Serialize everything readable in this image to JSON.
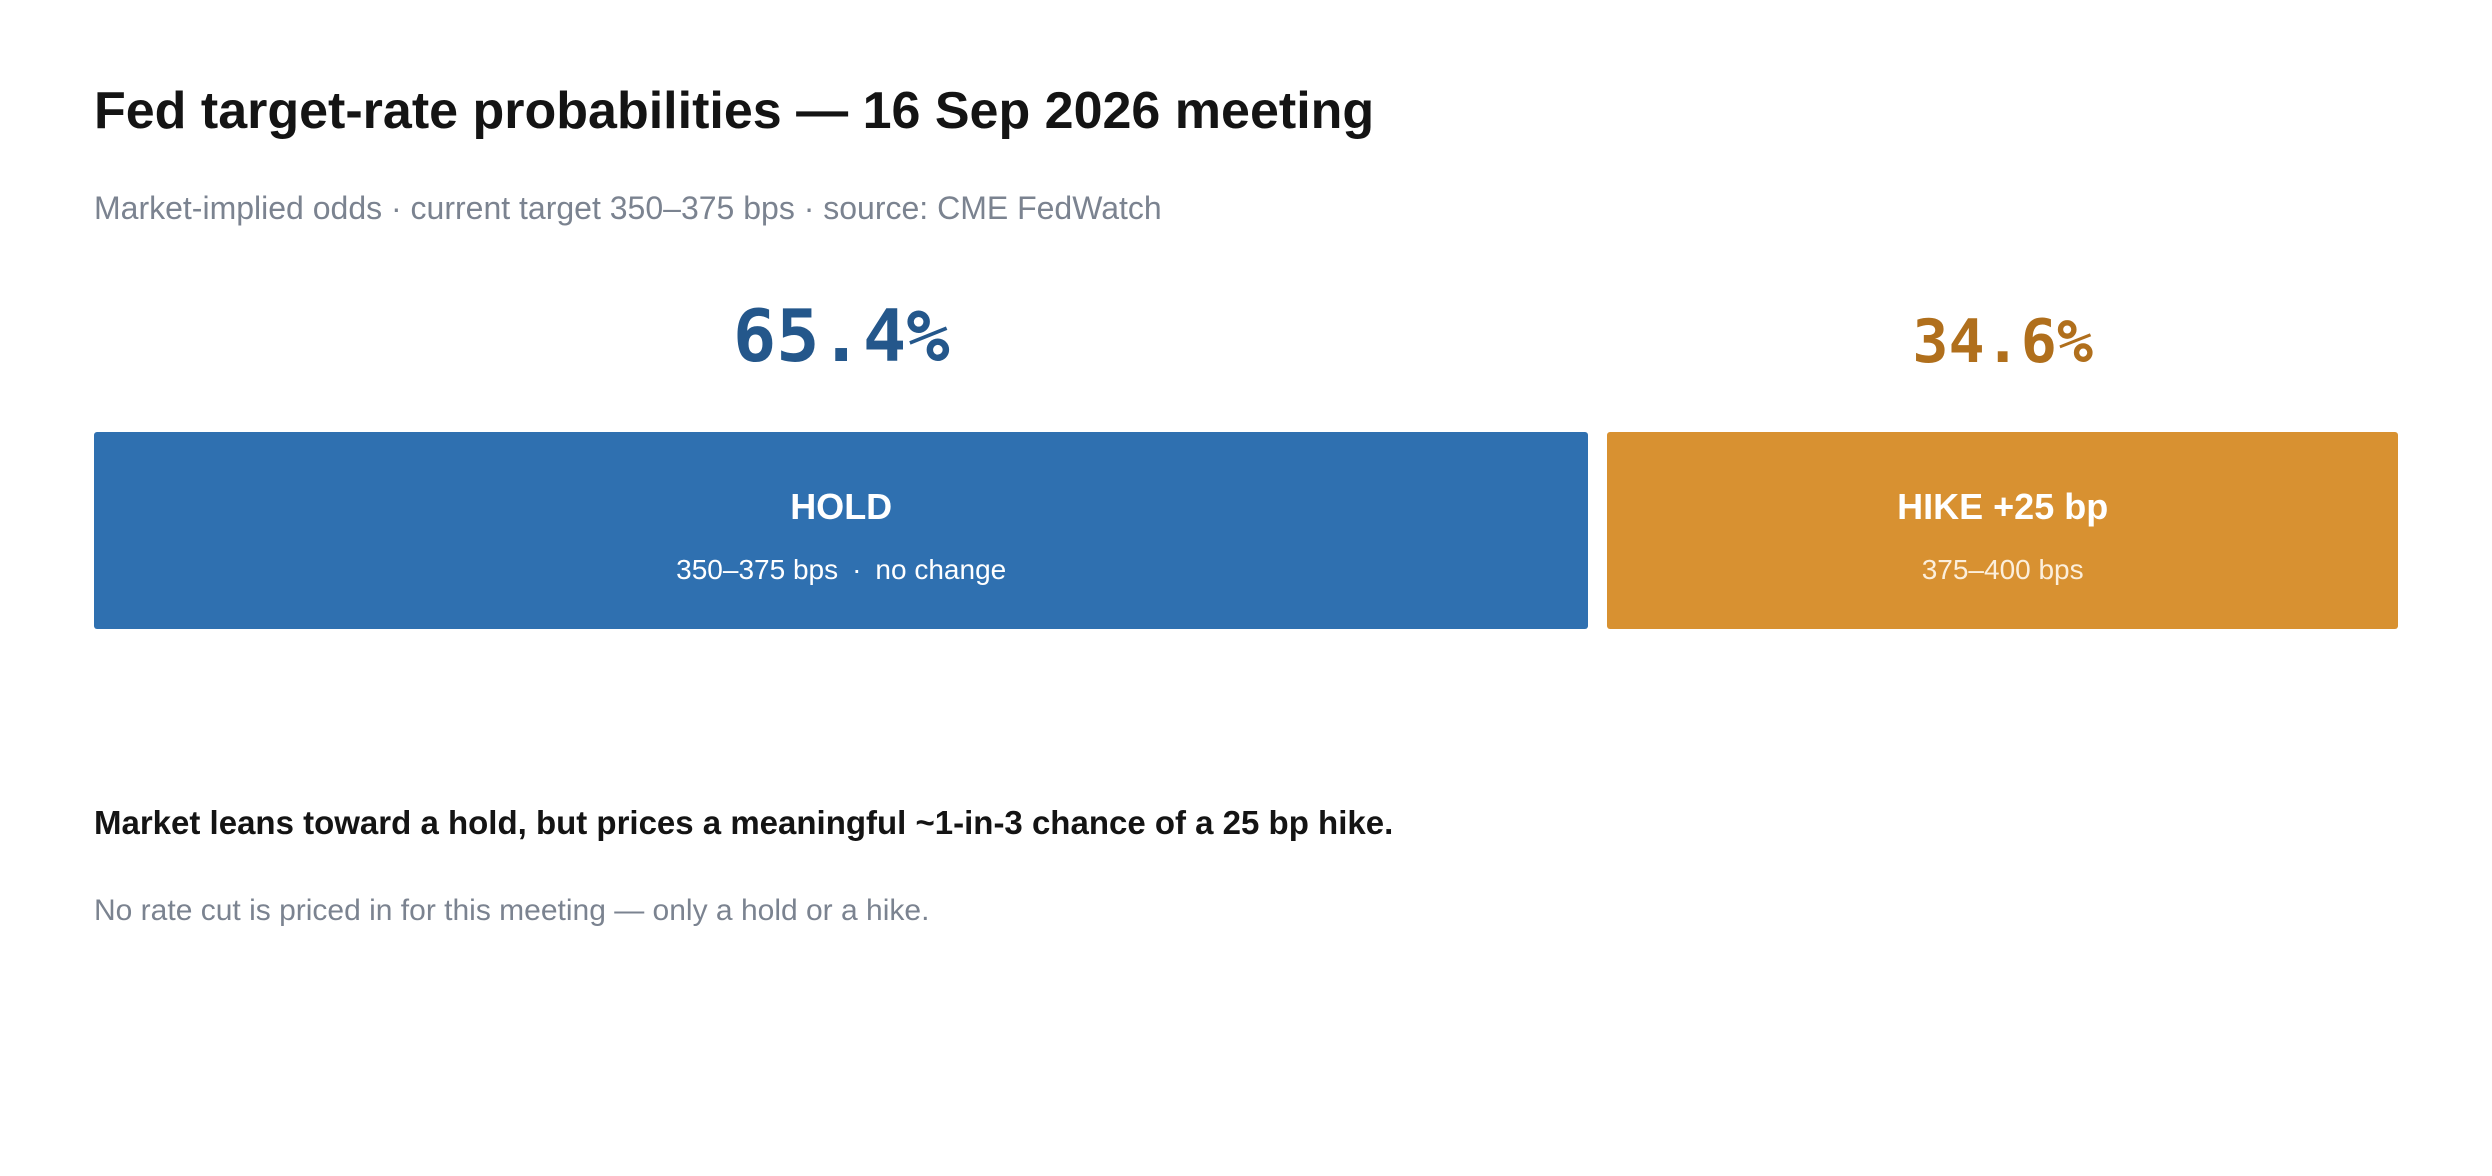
{
  "title": "Fed target-rate probabilities — 16 Sep 2026 meeting",
  "subtitle": "Market-implied odds · current target 350–375 bps · source: CME FedWatch",
  "colors": {
    "hold": "#2f70b0",
    "hold_text": "#24578b",
    "hike": "#d89131",
    "hike_text": "#b06f1c"
  },
  "chart_data": {
    "type": "bar",
    "orientation": "horizontal-stacked",
    "categories": [
      "HOLD",
      "HIKE +25 bp"
    ],
    "values": [
      65.4,
      34.6
    ],
    "unit": "%",
    "segments": [
      {
        "label": "HOLD",
        "value": 65.4,
        "value_label": "65.4%",
        "range": "350–375 bps",
        "note": "no change",
        "color": "#2f70b0",
        "text_color": "#24578b"
      },
      {
        "label": "HIKE +25 bp",
        "value": 34.6,
        "value_label": "34.6%",
        "range": "375–400 bps",
        "color": "#d89131",
        "text_color": "#b06f1c"
      }
    ]
  },
  "headline": "Market leans toward a hold, but prices a meaningful ~1-in-3 chance of a 25 bp hike.",
  "footnote": "No rate cut is priced in for this meeting — only a hold or a hike."
}
